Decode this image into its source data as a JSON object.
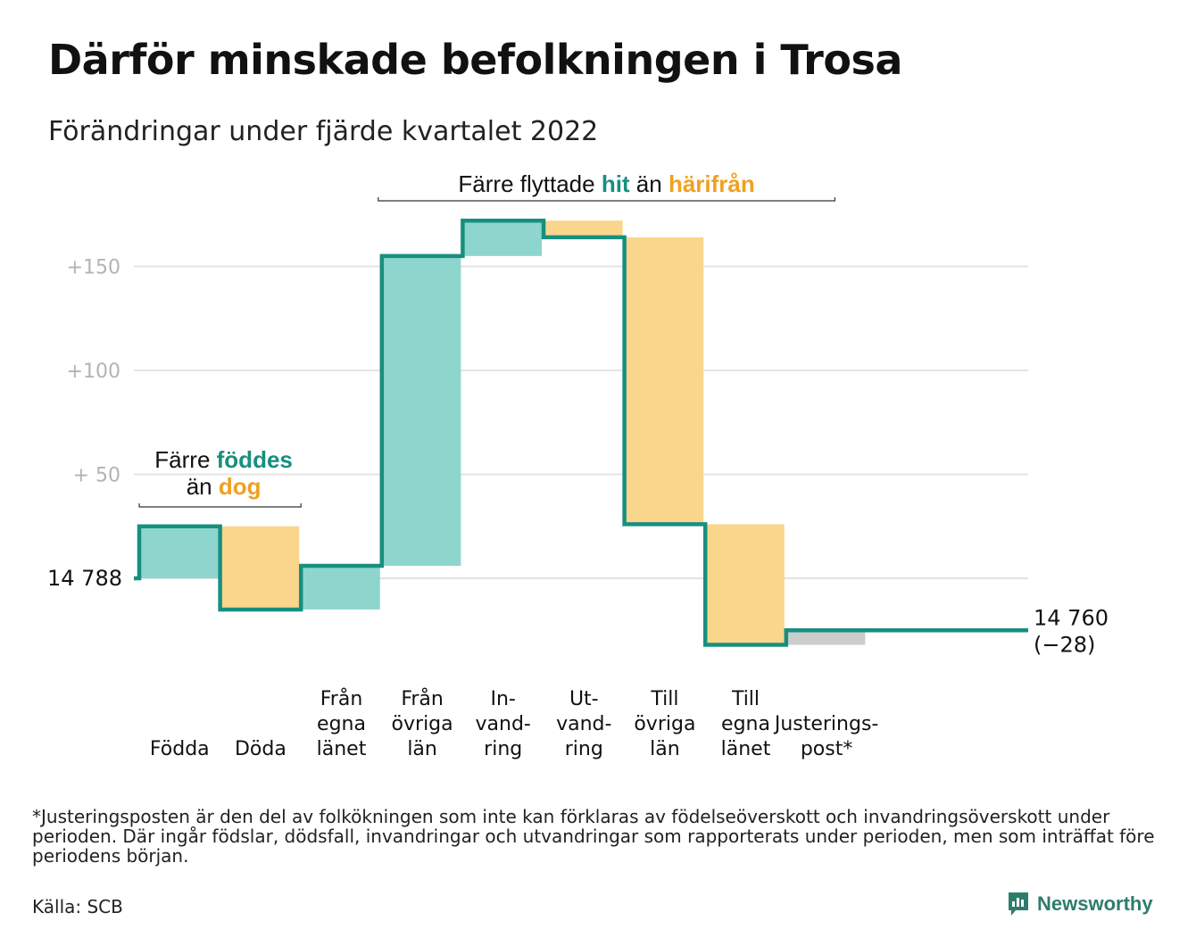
{
  "title": "Därför minskade befolkningen i Trosa",
  "subtitle": "Förändringar under fjärde kvartalet 2022",
  "footnote": "*Justeringsposten är den del av folkökningen som inte kan förklaras av födelseöverskott och invandringsöverskott under perioden. Där ingår födslar, dödsfall, invandringar och utvandringar som rapporterats under perioden, men som inträffat före periodens början.",
  "source": "Källa: SCB",
  "brand": {
    "name": "Newsworthy",
    "icon": "newsworthy-logo-icon"
  },
  "colors": {
    "inflow": "#8ed6cd",
    "outflow": "#fad58c",
    "adjustment": "#cccccc",
    "line": "#178f7f",
    "grid": "#e3e3e3",
    "accent_teal": "#178f7f",
    "accent_orange": "#f0a020"
  },
  "chart_data": {
    "type": "waterfall",
    "start": {
      "value": 14788,
      "label": "14 788"
    },
    "end": {
      "value": 14760,
      "label": "14 760",
      "change_label": "(−28)"
    },
    "y_ticks": [
      {
        "value": 50,
        "label": "+ 50"
      },
      {
        "value": 100,
        "label": "+100"
      },
      {
        "value": 150,
        "label": "+150"
      }
    ],
    "ylim": [
      -47,
      175
    ],
    "steps": [
      {
        "label": [
          "Födda"
        ],
        "delta": 25,
        "kind": "in"
      },
      {
        "label": [
          "Döda"
        ],
        "delta": -40,
        "kind": "out"
      },
      {
        "label": [
          "Från",
          "egna",
          "länet"
        ],
        "delta": 21,
        "kind": "in"
      },
      {
        "label": [
          "Från",
          "övriga",
          "län"
        ],
        "delta": 149,
        "kind": "in"
      },
      {
        "label": [
          "In-",
          "vand-",
          "ring"
        ],
        "delta": 17,
        "kind": "in"
      },
      {
        "label": [
          "Ut-",
          "vand-",
          "ring"
        ],
        "delta": -8,
        "kind": "out"
      },
      {
        "label": [
          "Till",
          "övriga",
          "län"
        ],
        "delta": -138,
        "kind": "out"
      },
      {
        "label": [
          "Till",
          "egna",
          "länet"
        ],
        "delta": -58,
        "kind": "out"
      },
      {
        "label": [
          "Justerings-",
          "post*"
        ],
        "delta": 7,
        "kind": "adjustment"
      }
    ],
    "annotations": [
      {
        "id": "births",
        "parts": [
          {
            "text": "Färre ",
            "color": "dark"
          },
          {
            "text": "föddes",
            "color": "teal"
          }
        ],
        "parts2": [
          {
            "text": "än ",
            "color": "dark"
          },
          {
            "text": "dog",
            "color": "orange"
          }
        ]
      },
      {
        "id": "moves",
        "parts": [
          {
            "text": "Färre flyttade ",
            "color": "dark"
          },
          {
            "text": "hit",
            "color": "teal"
          },
          {
            "text": " än ",
            "color": "dark"
          },
          {
            "text": "härifrån",
            "color": "orange"
          }
        ]
      }
    ]
  }
}
